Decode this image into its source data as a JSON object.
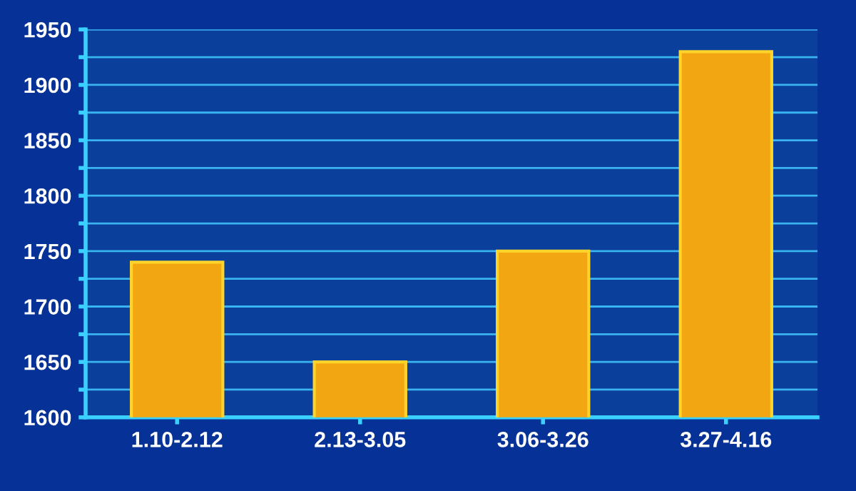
{
  "chart_data": {
    "type": "bar",
    "categories": [
      "1.10-2.12",
      "2.13-3.05",
      "3.06-3.26",
      "3.27-4.16"
    ],
    "values": [
      1740,
      1650,
      1750,
      1930
    ],
    "color": "#f2a612",
    "ylim": [
      1600,
      1950
    ],
    "yticks": [
      1600,
      {
        "value": 1625,
        "label": null
      },
      1650,
      {
        "value": 1675,
        "label": null
      },
      1700,
      {
        "value": 1725,
        "label": null
      },
      1750,
      {
        "value": 1775,
        "label": null
      },
      1800,
      {
        "value": 1825,
        "label": null
      },
      1850,
      {
        "value": 1875,
        "label": null
      },
      1900,
      {
        "value": 1925,
        "label": null
      },
      1950
    ],
    "grid": "y"
  }
}
